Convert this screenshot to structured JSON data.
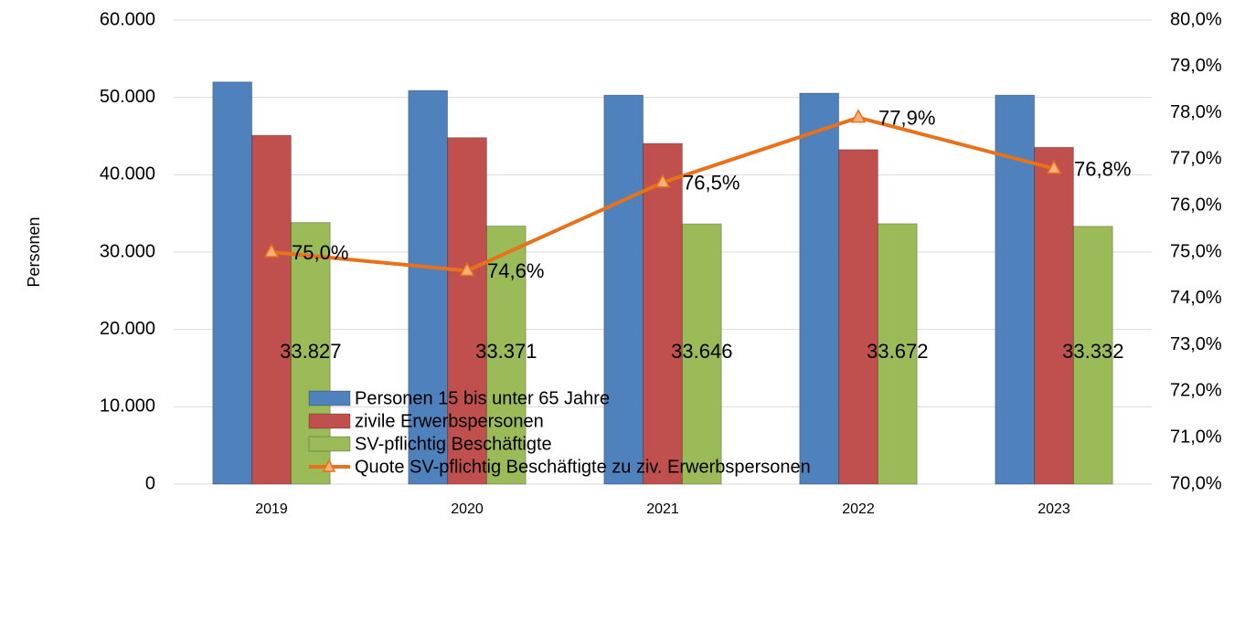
{
  "chart_data": {
    "type": "bar",
    "y_label": "Personen",
    "categories": [
      "2019",
      "2020",
      "2021",
      "2022",
      "2023"
    ],
    "series": [
      {
        "name": "Personen 15 bis unter 65 Jahre",
        "color": "#4f81bd",
        "values": [
          52000,
          50900,
          50300,
          50550,
          50300
        ]
      },
      {
        "name": "zivile Erwerbspersonen",
        "color": "#c0504d",
        "values": [
          45100,
          44800,
          44050,
          43250,
          43550
        ]
      },
      {
        "name": "SV-pflichtig Beschäftigte",
        "color": "#9bbb59",
        "values": [
          33827,
          33371,
          33646,
          33672,
          33332
        ],
        "value_labels": [
          "33.827",
          "33.371",
          "33.646",
          "33.672",
          "33.332"
        ]
      },
      {
        "name": "Quote SV-pflichtig Beschäftigte zu ziv. Erwerbspersonen",
        "type": "line",
        "axis": "y2",
        "color": "#e8711b",
        "values": [
          75.0,
          74.6,
          76.5,
          77.9,
          76.8
        ],
        "value_labels": [
          "75,0%",
          "74,6%",
          "76,5%",
          "77,9%",
          "76,8%"
        ]
      }
    ],
    "ylim": [
      0,
      60000
    ],
    "yticks": [
      0,
      {
        "value": 10000,
        "label": "10.000"
      },
      {
        "value": 20000,
        "label": "20.000"
      },
      {
        "value": 30000,
        "label": "30.000"
      },
      {
        "value": 40000,
        "label": "40.000"
      },
      {
        "value": 50000,
        "label": "50.000"
      },
      {
        "value": 60000,
        "label": "60.000"
      }
    ],
    "y2lim": [
      70,
      80
    ],
    "y2ticks": [
      {
        "value": 70,
        "label": "70,0%"
      },
      {
        "value": 71,
        "label": "71,0%"
      },
      {
        "value": 72,
        "label": "72,0%"
      },
      {
        "value": 73,
        "label": "73,0%"
      },
      {
        "value": 74,
        "label": "74,0%"
      },
      {
        "value": 75,
        "label": "75,0%"
      },
      {
        "value": 76,
        "label": "76,0%"
      },
      {
        "value": 77,
        "label": "77,0%"
      },
      {
        "value": 78,
        "label": "78,0%"
      },
      {
        "value": 79,
        "label": "79,0%"
      },
      {
        "value": 80,
        "label": "80,0%"
      }
    ],
    "grid": true,
    "legend": "bottom"
  }
}
